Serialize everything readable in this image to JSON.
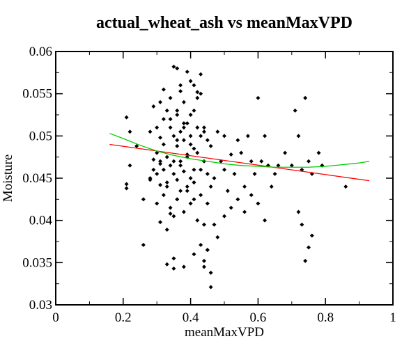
{
  "chart_data": {
    "type": "scatter",
    "title": "actual_wheat_ash vs meanMaxVPD",
    "xlabel": "meanMaxVPD",
    "ylabel": "Moisture",
    "xlim": [
      0,
      1
    ],
    "ylim": [
      0.03,
      0.06
    ],
    "x_ticks": [
      "0",
      "0.2",
      "0.4",
      "0.6",
      "0.8",
      "1"
    ],
    "y_ticks": [
      "0.03",
      "0.035",
      "0.04",
      "0.045",
      "0.05",
      "0.055",
      "0.06"
    ],
    "x_tick_values": [
      0,
      0.2,
      0.4,
      0.6,
      0.8,
      1.0
    ],
    "y_tick_values": [
      0.03,
      0.035,
      0.04,
      0.045,
      0.05,
      0.055,
      0.06
    ],
    "grid": false,
    "colors": {
      "points": "#000000",
      "linear_fit": "#ff0000",
      "quadratic_fit": "#00cc00"
    },
    "series": [
      {
        "type": "scatter",
        "x": [
          0.21,
          0.22,
          0.22,
          0.21,
          0.21,
          0.24,
          0.26,
          0.26,
          0.28,
          0.28,
          0.29,
          0.29,
          0.3,
          0.3,
          0.3,
          0.31,
          0.31,
          0.31,
          0.31,
          0.32,
          0.32,
          0.32,
          0.32,
          0.33,
          0.33,
          0.33,
          0.34,
          0.34,
          0.34,
          0.35,
          0.35,
          0.35,
          0.36,
          0.36,
          0.36,
          0.37,
          0.37,
          0.37,
          0.38,
          0.38,
          0.38,
          0.39,
          0.39,
          0.4,
          0.4,
          0.4,
          0.41,
          0.41,
          0.41,
          0.42,
          0.42,
          0.43,
          0.43,
          0.43,
          0.44,
          0.44,
          0.45,
          0.45,
          0.46,
          0.46,
          0.47,
          0.48,
          0.49,
          0.5,
          0.5,
          0.51,
          0.52,
          0.53,
          0.54,
          0.55,
          0.56,
          0.57,
          0.58,
          0.58,
          0.59,
          0.6,
          0.61,
          0.62,
          0.63,
          0.65,
          0.66,
          0.68,
          0.7,
          0.71,
          0.72,
          0.73,
          0.74,
          0.75,
          0.76,
          0.78,
          0.79,
          0.86,
          0.3,
          0.32,
          0.34,
          0.36,
          0.38,
          0.4,
          0.42,
          0.44,
          0.31,
          0.33,
          0.35,
          0.37,
          0.39,
          0.41,
          0.43,
          0.45,
          0.34,
          0.36,
          0.38,
          0.4,
          0.42,
          0.44,
          0.35,
          0.37,
          0.39,
          0.41,
          0.28,
          0.29,
          0.31,
          0.33,
          0.45,
          0.47,
          0.48,
          0.5,
          0.52,
          0.54,
          0.56,
          0.6,
          0.62,
          0.64,
          0.35,
          0.38,
          0.41,
          0.44,
          0.46,
          0.33,
          0.35,
          0.43,
          0.45,
          0.46,
          0.44,
          0.74,
          0.75,
          0.76,
          0.72,
          0.73,
          0.36,
          0.37,
          0.39,
          0.41,
          0.42,
          0.43,
          0.34,
          0.39,
          0.41,
          0.4,
          0.38,
          0.36
        ],
        "y": [
          0.0522,
          0.0505,
          0.0465,
          0.0443,
          0.0438,
          0.0488,
          0.0425,
          0.0371,
          0.0505,
          0.0448,
          0.0535,
          0.0472,
          0.051,
          0.048,
          0.0455,
          0.054,
          0.0498,
          0.0467,
          0.0442,
          0.0555,
          0.052,
          0.049,
          0.046,
          0.053,
          0.0475,
          0.0445,
          0.0545,
          0.051,
          0.0465,
          0.0582,
          0.05,
          0.0455,
          0.0525,
          0.0488,
          0.0448,
          0.056,
          0.0505,
          0.047,
          0.054,
          0.0495,
          0.0458,
          0.0515,
          0.0478,
          0.0565,
          0.049,
          0.045,
          0.053,
          0.0485,
          0.0445,
          0.0545,
          0.048,
          0.0573,
          0.05,
          0.046,
          0.051,
          0.047,
          0.0495,
          0.0455,
          0.0488,
          0.044,
          0.045,
          0.0505,
          0.047,
          0.05,
          0.046,
          0.0435,
          0.0478,
          0.0455,
          0.0495,
          0.048,
          0.044,
          0.05,
          0.047,
          0.043,
          0.0455,
          0.0545,
          0.047,
          0.05,
          0.0465,
          0.0455,
          0.0465,
          0.048,
          0.0465,
          0.053,
          0.05,
          0.046,
          0.0545,
          0.047,
          0.0455,
          0.048,
          0.0465,
          0.044,
          0.042,
          0.043,
          0.0415,
          0.0425,
          0.041,
          0.042,
          0.04,
          0.0395,
          0.0398,
          0.0389,
          0.0405,
          0.0435,
          0.044,
          0.0445,
          0.043,
          0.042,
          0.052,
          0.053,
          0.0515,
          0.0525,
          0.051,
          0.0505,
          0.047,
          0.0465,
          0.0475,
          0.046,
          0.045,
          0.046,
          0.047,
          0.044,
          0.0365,
          0.0395,
          0.038,
          0.0405,
          0.0415,
          0.0425,
          0.041,
          0.042,
          0.04,
          0.044,
          0.0355,
          0.0345,
          0.036,
          0.0352,
          0.0338,
          0.0348,
          0.0343,
          0.0371,
          0.0365,
          0.0321,
          0.0345,
          0.0352,
          0.0368,
          0.0382,
          0.041,
          0.0395,
          0.058,
          0.0553,
          0.0576,
          0.056,
          0.0552,
          0.055,
          0.0408,
          0.0435,
          0.0425,
          0.05,
          0.051,
          0.0495
        ]
      },
      {
        "type": "line",
        "name": "",
        "color": "#ff0000",
        "x": [
          0.16,
          0.93
        ],
        "y": [
          0.049,
          0.0447
        ]
      },
      {
        "type": "line",
        "name": "",
        "color": "#00cc00",
        "x": [
          0.16,
          0.2,
          0.25,
          0.3,
          0.35,
          0.4,
          0.45,
          0.5,
          0.55,
          0.6,
          0.65,
          0.7,
          0.75,
          0.8,
          0.85,
          0.9,
          0.93
        ],
        "y": [
          0.0503,
          0.0497,
          0.0489,
          0.0482,
          0.0477,
          0.0473,
          0.047,
          0.0467,
          0.0465,
          0.0464,
          0.0463,
          0.0463,
          0.0463,
          0.0464,
          0.0466,
          0.0468,
          0.047
        ]
      }
    ]
  }
}
